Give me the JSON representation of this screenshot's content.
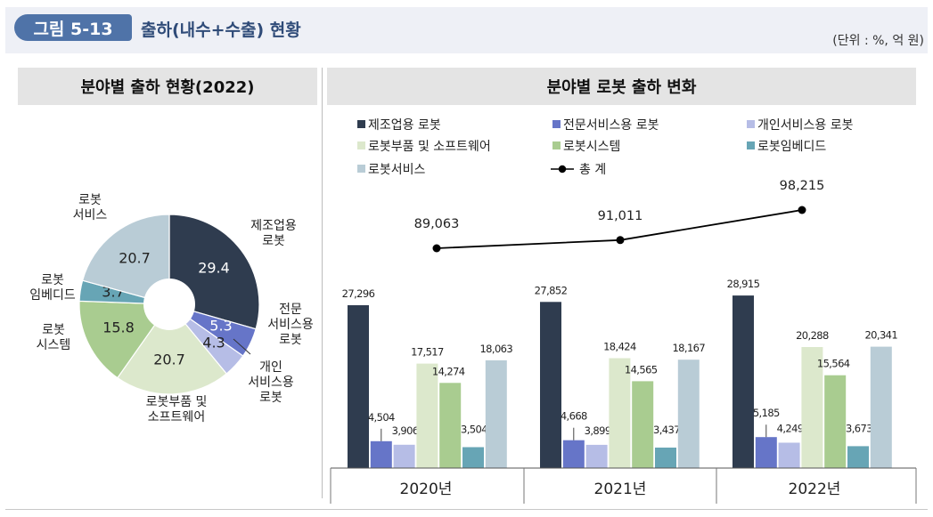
{
  "header": {
    "figure_number": "그림 5-13",
    "title": "출하(내수+수출) 현황",
    "unit": "(단위 : %, 억 원)"
  },
  "chart_data": [
    {
      "type": "pie",
      "title": "분야별 출하 현황(2022)",
      "donut": true,
      "slices": [
        {
          "label": "제조업용 로봇",
          "value": 29.4,
          "value_label": "29.4",
          "color": "#2f3c4f",
          "label_lines": [
            "제조업용",
            "로봇"
          ]
        },
        {
          "label": "전문서비스용 로봇",
          "value": 5.3,
          "value_label": "5.3",
          "color": "#6675c8",
          "label_lines": [
            "전문",
            "서비스용",
            "로봇"
          ]
        },
        {
          "label": "개인서비스용 로봇",
          "value": 4.3,
          "value_label": "4.3",
          "color": "#b6bde6",
          "label_lines": [
            "개인",
            "서비스용",
            "로봇"
          ]
        },
        {
          "label": "로봇부품 및 소프트웨어",
          "value": 20.7,
          "value_label": "20.7",
          "color": "#dce8cc",
          "label_lines": [
            "로봇부품 및",
            "소프트웨어"
          ]
        },
        {
          "label": "로봇시스템",
          "value": 15.8,
          "value_label": "15.8",
          "color": "#a9cc90",
          "label_lines": [
            "로봇",
            "시스템"
          ]
        },
        {
          "label": "로봇임베디드",
          "value": 3.7,
          "value_label": "3.7",
          "color": "#67a5b5",
          "label_lines": [
            "로봇",
            "임베디드"
          ]
        },
        {
          "label": "로봇서비스",
          "value": 20.7,
          "value_label": "20.7",
          "color": "#b9ccd6",
          "label_lines": [
            "로봇",
            "서비스"
          ]
        }
      ]
    },
    {
      "type": "bar",
      "title": "분야별 로봇 출하 변화",
      "categories": [
        "2020년",
        "2021년",
        "2022년"
      ],
      "ylim": [
        0,
        35000
      ],
      "series": [
        {
          "name": "제조업용 로봇",
          "color": "#2f3c4f",
          "values": [
            27296,
            27852,
            28915
          ],
          "labels": [
            "27,296",
            "27,852",
            "28,915"
          ]
        },
        {
          "name": "전문서비스용 로봇",
          "color": "#6675c8",
          "values": [
            4504,
            4668,
            5185
          ],
          "labels": [
            "4,504",
            "4,668",
            "5,185"
          ]
        },
        {
          "name": "개인서비스용 로봇",
          "color": "#b6bde6",
          "values": [
            3906,
            3899,
            4249
          ],
          "labels": [
            "3,906",
            "3,899",
            "4,249"
          ]
        },
        {
          "name": "로봇부품 및 소프트웨어",
          "color": "#dce8cc",
          "values": [
            17517,
            18424,
            20288
          ],
          "labels": [
            "17,517",
            "18,424",
            "20,288"
          ]
        },
        {
          "name": "로봇시스템",
          "color": "#a9cc90",
          "values": [
            14274,
            14565,
            15564
          ],
          "labels": [
            "14,274",
            "14,565",
            "15,564"
          ]
        },
        {
          "name": "로봇임베디드",
          "color": "#67a5b5",
          "values": [
            3504,
            3437,
            3673
          ],
          "labels": [
            "3,504",
            "3,437",
            "3,673"
          ]
        },
        {
          "name": "로봇서비스",
          "color": "#b9ccd6",
          "values": [
            18063,
            18167,
            20341
          ],
          "labels": [
            "18,063",
            "18,167",
            "20,341"
          ]
        }
      ],
      "total": {
        "name": "총 계",
        "values": [
          89063,
          91011,
          98215
        ],
        "labels": [
          "89,063",
          "91,011",
          "98,215"
        ],
        "color": "#000000"
      }
    }
  ]
}
